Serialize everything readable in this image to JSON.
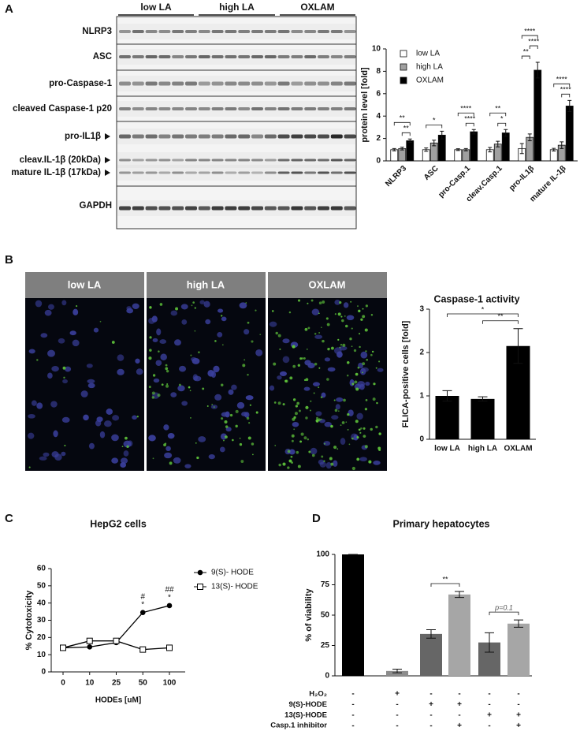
{
  "panel_labels": [
    "A",
    "B",
    "C",
    "D"
  ],
  "blot": {
    "groups": [
      "low LA",
      "high LA",
      "OXLAM"
    ],
    "rows": [
      "NLRP3",
      "ASC",
      "pro-Caspase-1",
      "cleaved Caspase-1 p20",
      "pro-IL1β",
      "cleav.IL-1β (20kDa)",
      "mature IL-1β (17kDa)",
      "GAPDH"
    ]
  },
  "microscopy": {
    "panels": [
      "low LA",
      "high LA",
      "OXLAM"
    ]
  },
  "chart_data": [
    {
      "type": "bar",
      "ylabel": "protein level [fold]",
      "categories": [
        "NLRP3",
        "ASC",
        "pro-Casp.1",
        "cleav.Casp.1",
        "pro-IL1β",
        "mature IL-1β"
      ],
      "series": [
        {
          "name": "low LA",
          "color": "#ffffff",
          "values": [
            1.0,
            1.0,
            1.0,
            1.0,
            1.1,
            1.0
          ],
          "errors": [
            0.1,
            0.15,
            0.08,
            0.2,
            0.45,
            0.12
          ]
        },
        {
          "name": "high LA",
          "color": "#a0a0a0",
          "values": [
            1.1,
            1.6,
            1.0,
            1.5,
            2.1,
            1.4
          ],
          "errors": [
            0.12,
            0.25,
            0.1,
            0.25,
            0.3,
            0.3
          ]
        },
        {
          "name": "OXLAM",
          "color": "#000000",
          "values": [
            1.8,
            2.3,
            2.6,
            2.5,
            8.1,
            4.9
          ],
          "errors": [
            0.15,
            0.35,
            0.2,
            0.3,
            0.7,
            0.5
          ]
        }
      ],
      "ylim": [
        0,
        10
      ],
      "yticks": [
        0,
        2,
        4,
        6,
        8,
        10
      ],
      "legend": "upper-left",
      "annotations": [
        {
          "text": "**",
          "category": 0,
          "between": [
            1,
            2
          ]
        },
        {
          "text": "**",
          "category": 0,
          "between": [
            0,
            2
          ]
        },
        {
          "text": "*",
          "category": 1,
          "between": [
            0,
            2
          ]
        },
        {
          "text": "****",
          "category": 2,
          "between": [
            1,
            2
          ]
        },
        {
          "text": "****",
          "category": 2,
          "between": [
            0,
            2
          ]
        },
        {
          "text": "*",
          "category": 3,
          "between": [
            1,
            2
          ]
        },
        {
          "text": "**",
          "category": 3,
          "between": [
            0,
            2
          ]
        },
        {
          "text": "**",
          "category": 4,
          "between": [
            0,
            1
          ]
        },
        {
          "text": "****",
          "category": 4,
          "between": [
            1,
            2
          ]
        },
        {
          "text": "****",
          "category": 4,
          "between": [
            0,
            2
          ]
        },
        {
          "text": "****",
          "category": 5,
          "between": [
            1,
            2
          ]
        },
        {
          "text": "****",
          "category": 5,
          "between": [
            0,
            2
          ]
        }
      ]
    },
    {
      "type": "bar",
      "title": "Caspase-1 activity",
      "ylabel": "FLICA-positive cells [fold]",
      "categories": [
        "low LA",
        "high LA",
        "OXLAM"
      ],
      "values": [
        1.0,
        0.93,
        2.15
      ],
      "errors": [
        0.12,
        0.05,
        0.4
      ],
      "color": "#000000",
      "ylim": [
        0,
        3
      ],
      "yticks": [
        0,
        1,
        2,
        3
      ],
      "annotations": [
        {
          "text": "**",
          "between": [
            1,
            2
          ]
        },
        {
          "text": "*",
          "between": [
            0,
            2
          ]
        }
      ]
    },
    {
      "type": "line",
      "title": "HepG2 cells",
      "xlabel": "HODEs [uM]",
      "ylabel": "% Cytotoxicity",
      "categories": [
        "0",
        "10",
        "25",
        "50",
        "100"
      ],
      "series": [
        {
          "name": "9(S)- HODE",
          "color": "#000000",
          "marker": "circle",
          "values": [
            14,
            14.5,
            17,
            34.5,
            38.5
          ]
        },
        {
          "name": "13(S)- HODE",
          "color": "#000000",
          "marker": "open-square",
          "values": [
            14,
            18,
            18,
            13,
            14
          ]
        }
      ],
      "ylim": [
        0,
        60
      ],
      "yticks": [
        0,
        10,
        20,
        30,
        40,
        50,
        60
      ],
      "legend": "right",
      "annotations": [
        {
          "text": "*",
          "index": 3
        },
        {
          "text": "#",
          "index": 3
        },
        {
          "text": "*",
          "index": 4
        },
        {
          "text": "##",
          "index": 4
        }
      ]
    },
    {
      "type": "bar",
      "title": "Primary hepatocytes",
      "ylabel": "% of viability",
      "values": [
        100,
        4,
        34.5,
        67,
        27.5,
        43
      ],
      "errors": [
        0,
        1.5,
        3.5,
        2.5,
        8,
        3
      ],
      "colors": [
        "#000000",
        "#8c8c8c",
        "#666666",
        "#a6a6a6",
        "#666666",
        "#a6a6a6"
      ],
      "ylim": [
        0,
        100
      ],
      "yticks": [
        0,
        25,
        50,
        75,
        100
      ],
      "annotations": [
        {
          "text": "**",
          "between": [
            2,
            3
          ]
        },
        {
          "text": "p=0.1",
          "between": [
            4,
            5
          ]
        }
      ],
      "treatments": [
        {
          "name": "H₂O₂",
          "marks": [
            "-",
            "+",
            "-",
            "-",
            "-",
            "-"
          ]
        },
        {
          "name": "9(S)-HODE",
          "marks": [
            "-",
            "-",
            "+",
            "+",
            "-",
            "-"
          ]
        },
        {
          "name": "13(S)-HODE",
          "marks": [
            "-",
            "-",
            "-",
            "-",
            "+",
            "+"
          ]
        },
        {
          "name": "Casp.1 inhibitor",
          "marks": [
            "-",
            "-",
            "-",
            "+",
            "-",
            "+"
          ]
        }
      ]
    }
  ]
}
